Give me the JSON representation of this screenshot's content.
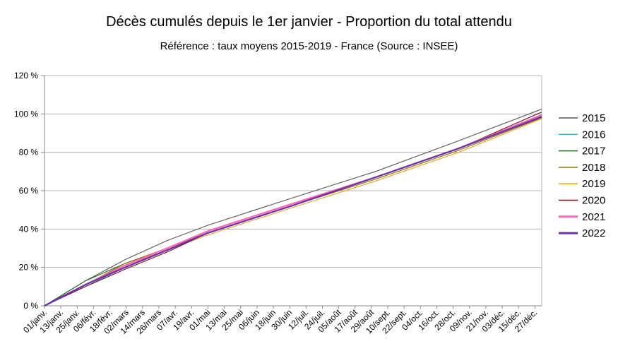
{
  "chart_data": {
    "type": "line",
    "title": "Décès cumulés depuis le 1er janvier - Proportion du total attendu",
    "subtitle": "Référence : taux moyens 2015-2019 - France  (Source : INSEE)",
    "xlabel": "",
    "ylabel": "",
    "ylim": [
      0,
      120
    ],
    "y_ticks": [
      "0 %",
      "20 %",
      "40 %",
      "60 %",
      "80 %",
      "100 %",
      "120 %"
    ],
    "y_tick_values": [
      0,
      20,
      40,
      60,
      80,
      100,
      120
    ],
    "x_tick_labels": [
      "01/janv.",
      "13/janv.",
      "25/janv.",
      "06/févr.",
      "18/févr.",
      "02/mars",
      "14/mars",
      "26/mars",
      "07/avr.",
      "19/avr.",
      "01/mai",
      "13/mai",
      "25/mai",
      "06/juin",
      "18/juin",
      "30/juin",
      "12/juil.",
      "24/juil.",
      "05/août",
      "17/août",
      "29/août",
      "10/sept.",
      "22/sept.",
      "04/oct.",
      "16/oct.",
      "28/oct.",
      "09/nov.",
      "21/nov.",
      "03/déc.",
      "15/déc.",
      "27/déc."
    ],
    "x_tick_days": [
      1,
      13,
      25,
      37,
      49,
      61,
      73,
      85,
      97,
      109,
      121,
      133,
      145,
      157,
      169,
      181,
      193,
      205,
      217,
      229,
      241,
      253,
      265,
      277,
      289,
      301,
      313,
      325,
      337,
      349,
      361
    ],
    "x_range_days": [
      1,
      366
    ],
    "grid": "horizontal",
    "legend_position": "right",
    "series": [
      {
        "name": "2015",
        "color": "#555555",
        "x": [
          1,
          31,
          60,
          91,
          121,
          182,
          244,
          305,
          366
        ],
        "values": [
          0,
          13,
          24,
          34,
          42,
          56,
          70,
          86,
          102.5
        ]
      },
      {
        "name": "2016",
        "color": "#2fb8c4",
        "x": [
          1,
          31,
          60,
          91,
          121,
          182,
          244,
          305,
          366
        ],
        "values": [
          0,
          10,
          20,
          29,
          38,
          52,
          67,
          82,
          99
        ]
      },
      {
        "name": "2017",
        "color": "#1a6b1a",
        "x": [
          1,
          31,
          60,
          91,
          121,
          182,
          244,
          305,
          366
        ],
        "values": [
          0,
          13,
          22,
          30,
          38,
          52,
          67,
          82,
          98.5
        ]
      },
      {
        "name": "2018",
        "color": "#8a7000",
        "x": [
          1,
          31,
          60,
          91,
          121,
          182,
          244,
          305,
          366
        ],
        "values": [
          0,
          11,
          22,
          30,
          38,
          52,
          66,
          81,
          98
        ]
      },
      {
        "name": "2019",
        "color": "#e8a020",
        "x": [
          1,
          31,
          60,
          91,
          121,
          182,
          244,
          305,
          366
        ],
        "values": [
          0,
          11,
          21,
          29,
          37,
          51,
          65,
          80,
          97.5
        ]
      },
      {
        "name": "2020",
        "color": "#7a0a1a",
        "x": [
          1,
          31,
          60,
          91,
          121,
          182,
          244,
          305,
          366
        ],
        "values": [
          0,
          10,
          19,
          28,
          38,
          52,
          67,
          82,
          101
        ]
      },
      {
        "name": "2021",
        "color": "#ff66b3",
        "x": [
          1,
          31,
          60,
          91,
          121,
          182,
          244,
          305,
          366
        ],
        "values": [
          0,
          11,
          21,
          30,
          39,
          53,
          67,
          82,
          99.5
        ]
      },
      {
        "name": "2022",
        "color": "#6a30a8",
        "x": [
          1,
          31,
          60,
          91,
          121,
          182,
          244,
          305,
          366
        ],
        "values": [
          0,
          11,
          20,
          29,
          38,
          52,
          67,
          82,
          98.5
        ]
      }
    ]
  }
}
